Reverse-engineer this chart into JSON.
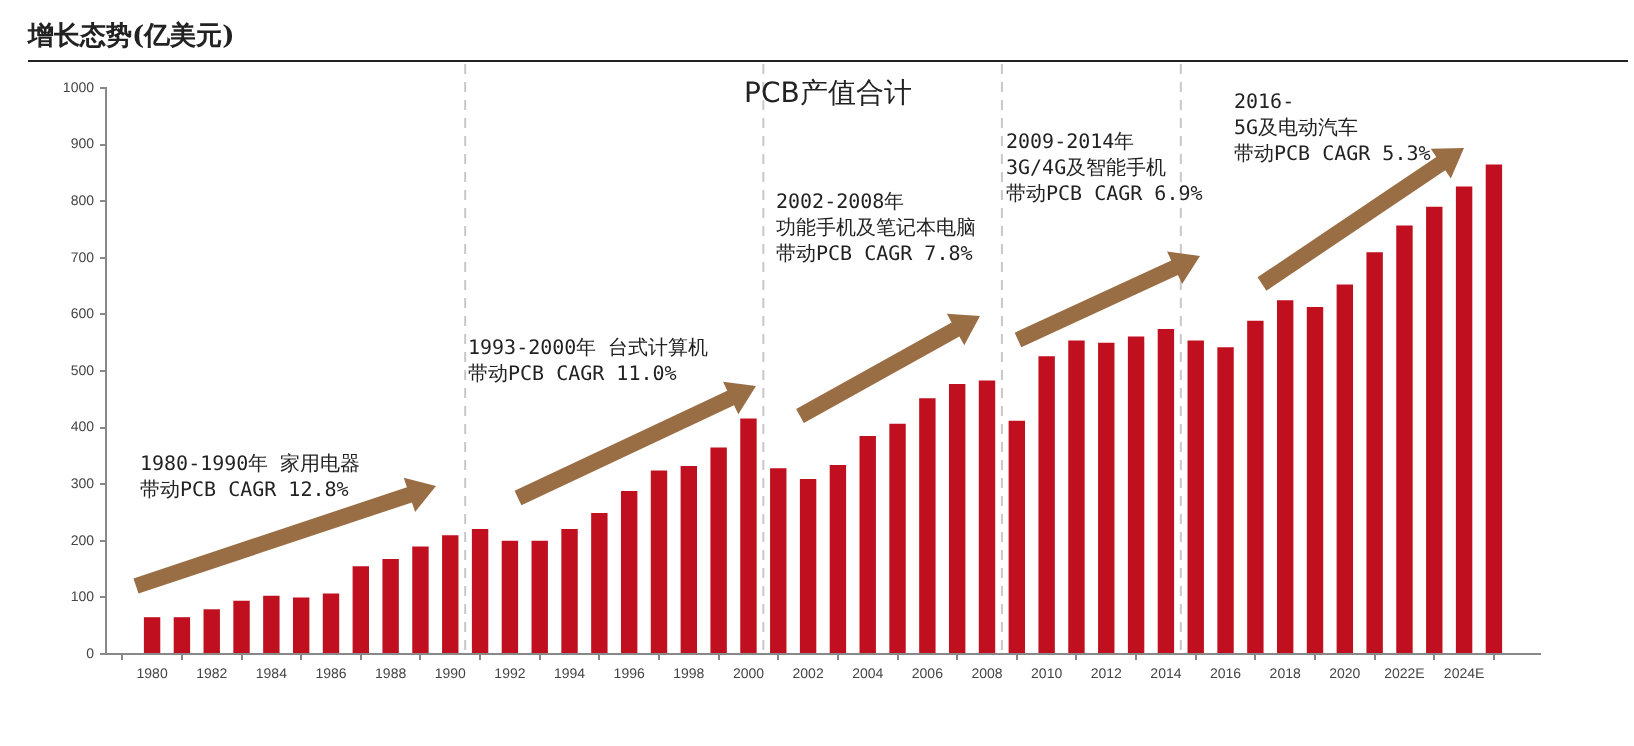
{
  "chart_data": {
    "type": "bar",
    "title": "增长态势(亿美元)",
    "subtitle": "PCB产值合计",
    "x": [
      1980,
      1981,
      1982,
      1983,
      1984,
      1985,
      1986,
      1987,
      1988,
      1989,
      1990,
      1991,
      1992,
      1993,
      1994,
      1995,
      1996,
      1997,
      1998,
      1999,
      2000,
      2001,
      2002,
      2003,
      2004,
      2005,
      2006,
      2007,
      2008,
      2009,
      2010,
      2011,
      2012,
      2013,
      2014,
      2015,
      2016,
      2017,
      2018,
      2019,
      2020,
      2021,
      2022,
      2023,
      2024,
      2025
    ],
    "values": [
      65,
      65,
      79,
      94,
      103,
      100,
      107,
      155,
      168,
      190,
      210,
      221,
      200,
      200,
      221,
      249,
      288,
      324,
      332,
      365,
      416,
      328,
      309,
      334,
      385,
      407,
      452,
      477,
      483,
      412,
      526,
      554,
      550,
      561,
      574,
      554,
      542,
      589,
      625,
      613,
      653,
      710,
      757,
      790,
      826,
      865
    ],
    "color": "#c00f1e",
    "xlim": [
      1979.5,
      2025.5
    ],
    "xticks": [
      1980,
      1982,
      1984,
      1986,
      1988,
      1990,
      1992,
      1994,
      1996,
      1998,
      2000,
      2002,
      2004,
      2006,
      2008,
      2010,
      2012,
      2014,
      2016,
      2018,
      2020,
      {
        "value": 2022,
        "label": "2022E"
      },
      {
        "value": 2024,
        "label": "2024E"
      }
    ],
    "ylim": [
      0,
      1000
    ],
    "yticks": [
      0,
      100,
      200,
      300,
      400,
      500,
      600,
      700,
      800,
      900,
      1000
    ],
    "grid": false,
    "legend": false,
    "ref_lines": [
      {
        "axis": "x",
        "value": 1990.5,
        "color": "#c8c8c8",
        "line_style": "dashed"
      },
      {
        "axis": "x",
        "value": 2000.5,
        "color": "#c8c8c8",
        "line_style": "dashed"
      },
      {
        "axis": "x",
        "value": 2008.5,
        "color": "#c8c8c8",
        "line_style": "dashed"
      },
      {
        "axis": "x",
        "value": 2014.5,
        "color": "#c8c8c8",
        "line_style": "dashed"
      }
    ],
    "annotations": [
      "1980-1990年 家用电器",
      "带动PCB CAGR 12.8%",
      "1993-2000年 台式计算机",
      "带动PCB CAGR 11.0%",
      "2002-2008年",
      "功能手机及笔记本电脑",
      "带动PCB CAGR 7.8%",
      "2009-2014年",
      "3G/4G及智能手机",
      "带动PCB CAGR 6.9%",
      "2016-",
      "5G及电动汽车",
      "带动PCB CAGR 5.3%"
    ]
  }
}
